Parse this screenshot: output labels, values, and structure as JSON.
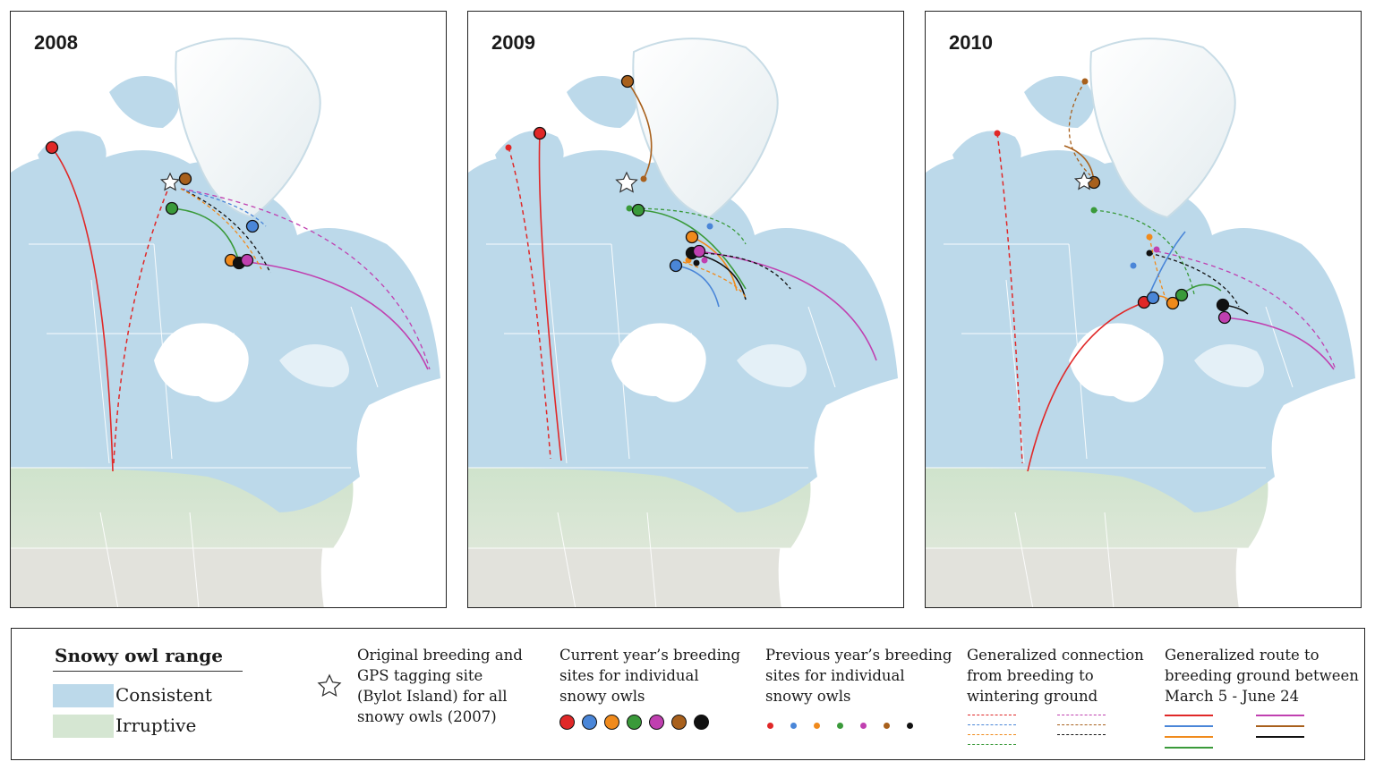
{
  "panels": [
    {
      "year": "2008"
    },
    {
      "year": "2009"
    },
    {
      "year": "2010"
    }
  ],
  "colors": {
    "red": "#e02828",
    "blue": "#4a86d8",
    "orange": "#f08a1c",
    "green": "#3a9a3a",
    "magenta": "#c040b0",
    "brown": "#a8601c",
    "black": "#111111",
    "range_consistent": "#bcd9ea",
    "range_irruptive": "#d5e6d2"
  },
  "legend": {
    "range_title": "Snowy owl range",
    "consistent": "Consistent",
    "irruptive": "Irruptive",
    "star_text": [
      "Original breeding and",
      "GPS tagging site",
      "(Bylot Island) for all",
      "snowy owls (2007)"
    ],
    "current_text": [
      "Current year’s breeding",
      "sites for individual",
      "snowy owls"
    ],
    "previous_text": [
      "Previous year’s breeding",
      "sites for individual",
      "snowy owls"
    ],
    "connection_text": [
      "Generalized connection",
      "from breeding to",
      "wintering ground"
    ],
    "route_text": [
      "Generalized route to",
      "breeding ground between",
      "March 5 - June 24"
    ]
  }
}
